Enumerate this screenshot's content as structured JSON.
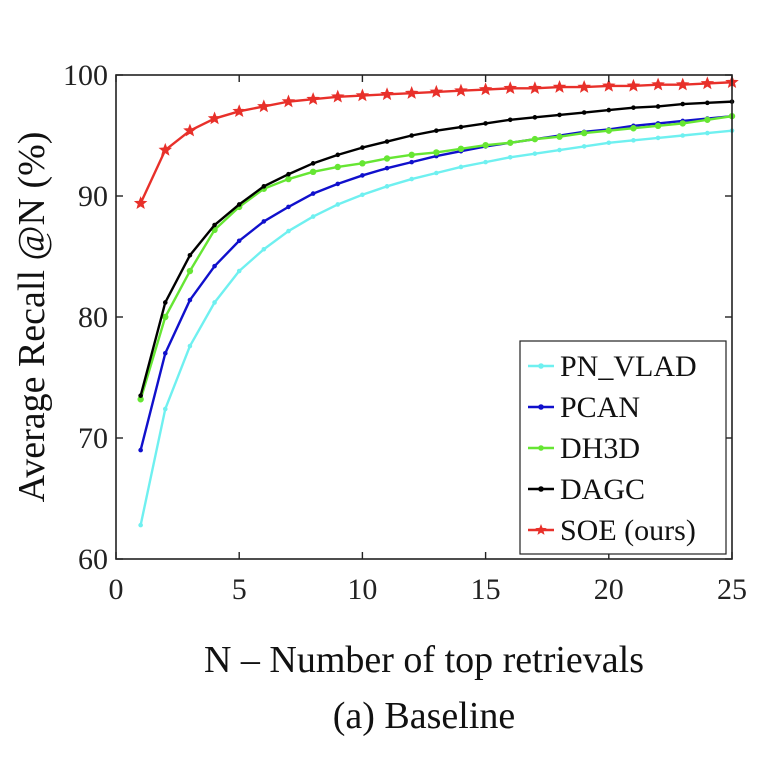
{
  "chart_data": {
    "type": "line",
    "title": "",
    "caption": "(a) Baseline",
    "xlabel": "N – Number of top retrievals",
    "ylabel": "Average Recall @N (%)",
    "xlim": [
      0,
      25
    ],
    "ylim": [
      60,
      100
    ],
    "xticks": [
      0,
      5,
      10,
      15,
      20,
      25
    ],
    "yticks": [
      60,
      70,
      80,
      90,
      100
    ],
    "grid": false,
    "legend_position": "bottom-right",
    "x": [
      1,
      2,
      3,
      4,
      5,
      6,
      7,
      8,
      9,
      10,
      11,
      12,
      13,
      14,
      15,
      16,
      17,
      18,
      19,
      20,
      21,
      22,
      23,
      24,
      25
    ],
    "series": [
      {
        "name": "PN_VLAD",
        "color": "#6ff0f0",
        "marker": "dot",
        "values": [
          62.8,
          72.4,
          77.6,
          81.2,
          83.8,
          85.6,
          87.1,
          88.3,
          89.3,
          90.1,
          90.8,
          91.4,
          91.9,
          92.4,
          92.8,
          93.2,
          93.5,
          93.8,
          94.1,
          94.4,
          94.6,
          94.8,
          95.0,
          95.2,
          95.4
        ]
      },
      {
        "name": "PCAN",
        "color": "#1010cc",
        "marker": "dot",
        "values": [
          69.0,
          77.0,
          81.4,
          84.2,
          86.3,
          87.9,
          89.1,
          90.2,
          91.0,
          91.7,
          92.3,
          92.8,
          93.3,
          93.7,
          94.1,
          94.4,
          94.7,
          95.0,
          95.3,
          95.5,
          95.8,
          96.0,
          96.2,
          96.4,
          96.6
        ]
      },
      {
        "name": "DH3D",
        "color": "#66e633",
        "marker": "dot",
        "values": [
          73.2,
          80.0,
          83.8,
          87.2,
          89.1,
          90.6,
          91.4,
          92.0,
          92.4,
          92.7,
          93.1,
          93.4,
          93.6,
          93.9,
          94.2,
          94.4,
          94.7,
          94.9,
          95.2,
          95.4,
          95.6,
          95.8,
          96.0,
          96.3,
          96.6
        ]
      },
      {
        "name": "DAGC",
        "color": "#000000",
        "marker": "dot",
        "values": [
          73.5,
          81.2,
          85.1,
          87.6,
          89.3,
          90.8,
          91.8,
          92.7,
          93.4,
          94.0,
          94.5,
          95.0,
          95.4,
          95.7,
          96.0,
          96.3,
          96.5,
          96.7,
          96.9,
          97.1,
          97.3,
          97.4,
          97.6,
          97.7,
          97.8
        ]
      },
      {
        "name": "SOE (ours)",
        "color": "#e8302a",
        "marker": "star",
        "values": [
          89.4,
          93.8,
          95.4,
          96.4,
          97.0,
          97.4,
          97.8,
          98.0,
          98.2,
          98.3,
          98.4,
          98.5,
          98.6,
          98.7,
          98.8,
          98.9,
          98.9,
          99.0,
          99.0,
          99.1,
          99.1,
          99.2,
          99.2,
          99.3,
          99.4
        ]
      }
    ]
  }
}
